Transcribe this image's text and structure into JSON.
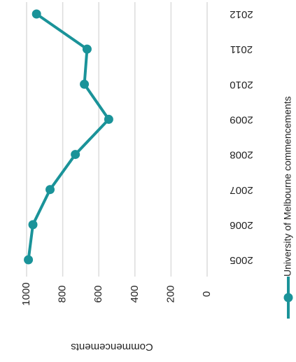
{
  "chart_data": {
    "type": "line",
    "ylabel": "Commencements",
    "categories": [
      "2005",
      "2006",
      "2007",
      "2008",
      "2009",
      "2010",
      "2011",
      "2012"
    ],
    "series": [
      {
        "name": "University of Melbourne commencements",
        "color": "#1a9399",
        "values": [
          990,
          965,
          870,
          730,
          545,
          680,
          665,
          945
        ]
      }
    ],
    "ylim": [
      0,
      1000
    ],
    "yticks": [
      0,
      200,
      400,
      600,
      800,
      1000
    ],
    "grid": true
  }
}
